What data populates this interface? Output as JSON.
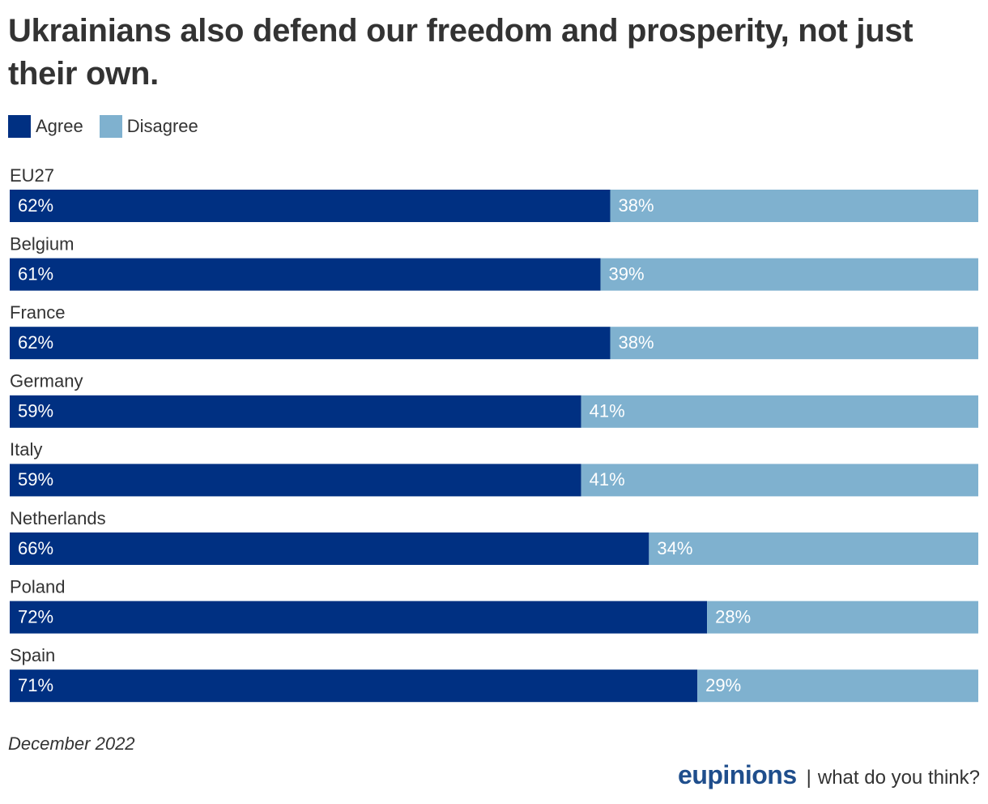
{
  "chart_data": {
    "type": "bar",
    "orientation": "horizontal",
    "stacked": true,
    "title": "Ukrainians also defend our freedom and prosperity, not just their own.",
    "categories": [
      "EU27",
      "Belgium",
      "France",
      "Germany",
      "Italy",
      "Netherlands",
      "Poland",
      "Spain"
    ],
    "series": [
      {
        "name": "Agree",
        "values": [
          62,
          61,
          62,
          59,
          59,
          66,
          72,
          71
        ]
      },
      {
        "name": "Disagree",
        "values": [
          38,
          39,
          38,
          41,
          41,
          34,
          28,
          29
        ]
      }
    ],
    "value_suffix": "%",
    "xlim": [
      0,
      100
    ],
    "xlabel": "",
    "ylabel": "",
    "grid": false,
    "legend_position": "top-left",
    "colors": {
      "agree": "#003082",
      "disagree": "#7fb1cf"
    }
  },
  "legend": {
    "items": [
      {
        "label": "Agree",
        "color": "#003082"
      },
      {
        "label": "Disagree",
        "color": "#7fb1cf"
      }
    ]
  },
  "footnote": "December 2022",
  "branding": {
    "logo": "eupinions",
    "separator": "|",
    "tagline": "what do you think?"
  }
}
